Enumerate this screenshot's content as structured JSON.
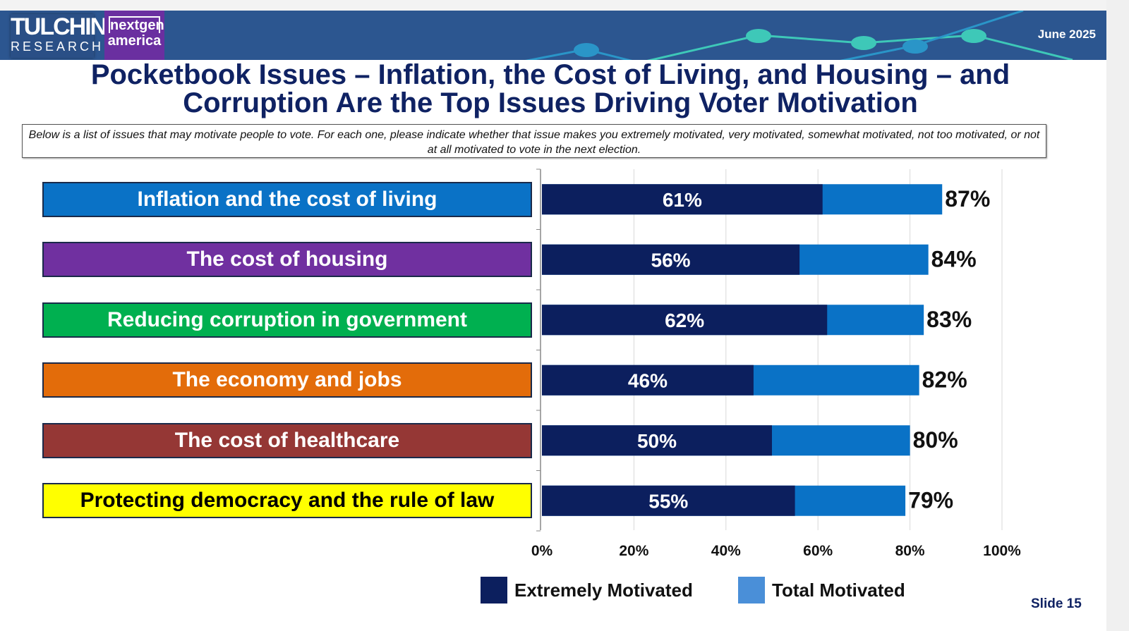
{
  "header": {
    "logo_tulchin": "TULCHIN",
    "logo_research": "RESEARCH",
    "logo_nextgen": "nextgen",
    "logo_america": "america",
    "date": "June 2025"
  },
  "title_line1": "Pocketbook Issues – Inflation, the Cost of Living, and Housing – and",
  "title_line2": "Corruption Are the Top Issues Driving Voter Motivation",
  "question": "Below is a list of issues that may motivate people to vote. For each one, please indicate whether that issue makes you extremely motivated, very motivated, somewhat motivated, not too motivated, or not at all motivated to vote in the next election.",
  "chart_data": {
    "type": "bar",
    "orientation": "horizontal",
    "categories": [
      "Inflation and the cost of living",
      "The cost of housing",
      "Reducing corruption in government",
      "The economy and jobs",
      "The cost of healthcare",
      "Protecting democracy and the rule of law"
    ],
    "category_colors": [
      "#0a72c6",
      "#7030a0",
      "#00b050",
      "#e36c0a",
      "#953735",
      "#ffff00"
    ],
    "category_text_colors": [
      "#ffffff",
      "#ffffff",
      "#ffffff",
      "#ffffff",
      "#ffffff",
      "#000000"
    ],
    "series": [
      {
        "name": "Extremely Motivated",
        "color": "#0c1f5e",
        "values": [
          61,
          56,
          62,
          46,
          50,
          55
        ],
        "labels": [
          "61%",
          "56%",
          "62%",
          "46%",
          "50%",
          "55%"
        ]
      },
      {
        "name": "Total Motivated",
        "color": "#0a72c6",
        "values": [
          87,
          84,
          83,
          82,
          80,
          79
        ],
        "labels": [
          "87%",
          "84%",
          "83%",
          "82%",
          "80%",
          "79%"
        ]
      }
    ],
    "xlim": [
      0,
      100
    ],
    "xticks": [
      "0%",
      "20%",
      "40%",
      "60%",
      "80%",
      "100%"
    ],
    "grid": true,
    "legend_position": "bottom"
  },
  "legend": {
    "s1": "Extremely Motivated",
    "s2": "Total Motivated",
    "s2_color": "#4a8fd8"
  },
  "slide": "Slide 15"
}
